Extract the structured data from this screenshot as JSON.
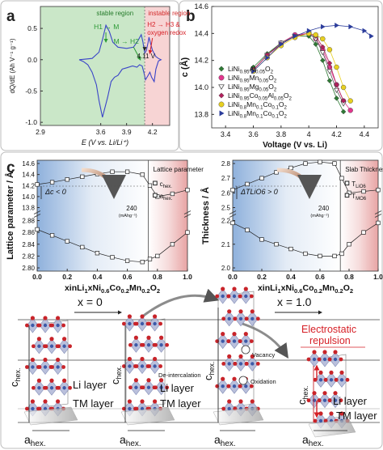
{
  "panels": {
    "a": {
      "label": "a"
    },
    "b": {
      "label": "b"
    },
    "c": {
      "label": "c"
    }
  },
  "chart_data": [
    {
      "panel": "a",
      "type": "line",
      "xlabel": "E (V vs. Li/Li⁺)",
      "ylabel": "dQ/dE (Ah V⁻¹ g⁻¹)",
      "xlim": [
        2.9,
        4.4
      ],
      "ylim": [
        -1.05,
        0.85
      ],
      "xticks": [
        "2.9",
        "3.6",
        "3.9",
        "4.2"
      ],
      "yticks": [
        "-1.0",
        "-0.5",
        "0.0",
        "0.5"
      ],
      "regions": [
        {
          "label": "stable region",
          "x": [
            2.9,
            4.11
          ],
          "color": "#9fd39a"
        },
        {
          "label": "instable region",
          "x": [
            4.11,
            4.4
          ],
          "color": "#f1b7b7"
        }
      ],
      "annotations": [
        "H1 → M",
        "M → H2",
        "H2 → H3 &",
        "oxygen redox",
        "4.11 V"
      ],
      "series": [
        {
          "color": "#3a44c8",
          "x": [
            3.35,
            3.5,
            3.58,
            3.62,
            3.66,
            3.7,
            3.74,
            3.8,
            3.9,
            3.98,
            4.03,
            4.07,
            4.09,
            4.11,
            4.13,
            4.15,
            4.16,
            4.18,
            4.2,
            4.24,
            4.27,
            4.3,
            4.27,
            4.24,
            4.22,
            4.19,
            4.17,
            4.15,
            4.12,
            4.1,
            4.08,
            4.05,
            4.02,
            3.97,
            3.9,
            3.85,
            3.8,
            3.76,
            3.72,
            3.68,
            3.62,
            3.58,
            3.55,
            3.5,
            3.45,
            3.4,
            3.35
          ],
          "y": [
            0.0,
            0.02,
            0.12,
            0.32,
            0.55,
            0.45,
            0.28,
            0.2,
            0.18,
            0.2,
            0.3,
            0.4,
            0.28,
            0.1,
            0.15,
            0.28,
            0.36,
            0.25,
            0.15,
            0.05,
            0.02,
            0.0,
            -0.02,
            -0.15,
            -0.35,
            -0.28,
            -0.2,
            -0.25,
            -0.32,
            -0.2,
            -0.1,
            -0.08,
            -0.12,
            -0.1,
            -0.13,
            -0.15,
            -0.25,
            -0.28,
            -0.35,
            -0.6,
            -0.92,
            -0.65,
            -0.4,
            -0.2,
            -0.08,
            -0.03,
            0.0
          ]
        }
      ]
    },
    {
      "panel": "b",
      "type": "scatter",
      "xlabel": "Voltage (V vs. Li)",
      "ylabel": "c (Å)",
      "xlim": [
        3.3,
        4.5
      ],
      "ylim": [
        13.7,
        14.6
      ],
      "xticks": [
        "3.4",
        "3.6",
        "3.8",
        "4",
        "4.2",
        "4.4"
      ],
      "yticks": [
        "13.8",
        "14.0",
        "14.2",
        "14.4",
        "14.6"
      ],
      "series": [
        {
          "name": "LiNi0.95Al0.05O2",
          "marker": "diamond",
          "color": "#2f7a35",
          "x": [
            3.6,
            3.7,
            3.8,
            3.9,
            4.0,
            4.05,
            4.1,
            4.15,
            4.2,
            4.25
          ],
          "y": [
            14.15,
            14.25,
            14.33,
            14.38,
            14.38,
            14.32,
            14.2,
            14.05,
            13.92,
            13.82
          ]
        },
        {
          "name": "LiNi0.95Mn0.05O2",
          "marker": "circle",
          "color": "#e2368e",
          "x": [
            3.6,
            3.7,
            3.8,
            3.9,
            4.0,
            4.05,
            4.1,
            4.15,
            4.2,
            4.25,
            4.3
          ],
          "y": [
            14.13,
            14.24,
            14.33,
            14.39,
            14.4,
            14.36,
            14.28,
            14.15,
            14.02,
            13.9,
            13.83
          ]
        },
        {
          "name": "LiNi0.95Mg0.05O2",
          "marker": "triangle-down",
          "color": "#555555",
          "x": [
            3.6,
            3.7,
            3.8,
            3.9,
            4.0,
            4.05,
            4.1,
            4.15,
            4.2,
            4.25
          ],
          "y": [
            14.13,
            14.24,
            14.33,
            14.38,
            14.4,
            14.36,
            14.26,
            14.12,
            13.98,
            13.88
          ]
        },
        {
          "name": "LiNi0.95Co0.05Al0.05O2",
          "marker": "diamond",
          "color": "#b1205c",
          "x": [
            3.6,
            3.7,
            3.8,
            3.9,
            4.0,
            4.05,
            4.1,
            4.15,
            4.2,
            4.25
          ],
          "y": [
            14.13,
            14.24,
            14.32,
            14.38,
            14.4,
            14.38,
            14.3,
            14.18,
            14.02,
            13.9
          ]
        },
        {
          "name": "LiNi0.8Mn0.1Co0.1O2",
          "marker": "circle",
          "color": "#e8d020",
          "x": [
            3.6,
            3.7,
            3.8,
            3.9,
            4.0,
            4.05,
            4.1,
            4.15,
            4.2,
            4.25,
            4.3
          ],
          "y": [
            14.12,
            14.22,
            14.31,
            14.37,
            14.4,
            14.39,
            14.36,
            14.28,
            14.15,
            14.0,
            13.9
          ]
        },
        {
          "name": "LiNi0.8Mn0.1Co0.1O2",
          "marker": "triangle-right",
          "color": "#2b3c9b",
          "x": [
            3.6,
            3.7,
            3.8,
            3.9,
            4.0,
            4.1,
            4.2,
            4.3,
            4.4,
            4.45
          ],
          "y": [
            14.12,
            14.22,
            14.32,
            14.38,
            14.42,
            14.45,
            14.46,
            14.45,
            14.42,
            14.38
          ]
        }
      ]
    },
    {
      "panel": "c-left",
      "type": "line",
      "xlabel": "x in Li1-xNi0.6Co0.2Mn0.2O2",
      "ylabel": "Lattice parameter / Å",
      "xlim": [
        0.0,
        1.0
      ],
      "xticks": [
        "0.0",
        "0.2",
        "0.4",
        "0.6",
        "0.8",
        "1.0"
      ],
      "yticks_top": [
        "13.8",
        "14.0",
        "14.2",
        "14.4",
        "14.6"
      ],
      "yticks_bottom": [
        "2.80",
        "2.82",
        "2.84",
        "2.86",
        "2.88"
      ],
      "legend_title": "Lattice parameter",
      "annotations": [
        "Δc < 0",
        "240",
        "(mAhg⁻¹)"
      ],
      "series": [
        {
          "name": "c hex.",
          "x": [
            0.0,
            0.1,
            0.2,
            0.3,
            0.4,
            0.5,
            0.6,
            0.7,
            0.75,
            0.8,
            0.9,
            1.0
          ],
          "y": [
            14.22,
            14.26,
            14.31,
            14.36,
            14.41,
            14.45,
            14.45,
            14.4,
            14.2,
            14.0,
            14.05,
            14.12
          ]
        },
        {
          "name": "a hex.",
          "x": [
            0.0,
            0.1,
            0.2,
            0.3,
            0.4,
            0.5,
            0.6,
            0.7,
            0.75,
            0.8,
            0.9,
            1.0
          ],
          "y": [
            2.865,
            2.855,
            2.845,
            2.835,
            2.825,
            2.818,
            2.812,
            2.81,
            2.815,
            2.82,
            2.84,
            2.86
          ]
        }
      ]
    },
    {
      "panel": "c-right",
      "type": "line",
      "xlabel": "x in Li1-xNi0.6Co0.2Mn0.2O2",
      "ylabel": "Thickness / Å",
      "xlim": [
        0.0,
        1.0
      ],
      "xticks": [
        "0.0",
        "0.2",
        "0.4",
        "0.6",
        "0.8",
        "1.0"
      ],
      "yticks_top": [
        "2.5",
        "2.6",
        "2.7",
        "2.8"
      ],
      "yticks_bottom": [
        "2.0",
        "2.1",
        "2.2"
      ],
      "legend_title": "Slab Thickness",
      "annotations": [
        "ΔTLiO6 > 0",
        "240",
        "(mAhg⁻¹)"
      ],
      "series": [
        {
          "name": "TLiO6",
          "x": [
            0.0,
            0.1,
            0.2,
            0.3,
            0.4,
            0.5,
            0.6,
            0.7,
            0.75,
            0.8,
            0.9,
            1.0
          ],
          "y": [
            2.62,
            2.66,
            2.7,
            2.74,
            2.77,
            2.8,
            2.81,
            2.8,
            2.7,
            2.6,
            2.61,
            2.62
          ]
        },
        {
          "name": "TMO6",
          "x": [
            0.0,
            0.1,
            0.2,
            0.3,
            0.4,
            0.5,
            0.6,
            0.7,
            0.75,
            0.8,
            0.9,
            1.0
          ],
          "y": [
            2.19,
            2.16,
            2.12,
            2.1,
            2.08,
            2.06,
            2.05,
            2.05,
            2.06,
            2.1,
            2.15,
            2.19
          ]
        }
      ]
    }
  ],
  "diagram": {
    "x0_label": "x = 0",
    "x1_label": "x = 1.0",
    "repulsion_label": "Electrostatic\nrepulsion",
    "c_hex": "c",
    "c_hex_sub": "hex.",
    "a_hex": "a",
    "a_hex_sub": "hex.",
    "li_layer": "Li layer",
    "tm_layer": "TM layer",
    "deintercalation": "De-intercalation",
    "vacancy": "Vacancy",
    "oxidation": "Oxidation"
  },
  "colors": {
    "stable": "#9fd39a",
    "instable": "#f1b7b7",
    "curve_a": "#3a44c8",
    "c_blue": "#bcd0ea",
    "c_red": "#f3cccc",
    "oxygen": "#c8242a",
    "metal": "#3d5aa8",
    "red_text": "#d61f26"
  }
}
